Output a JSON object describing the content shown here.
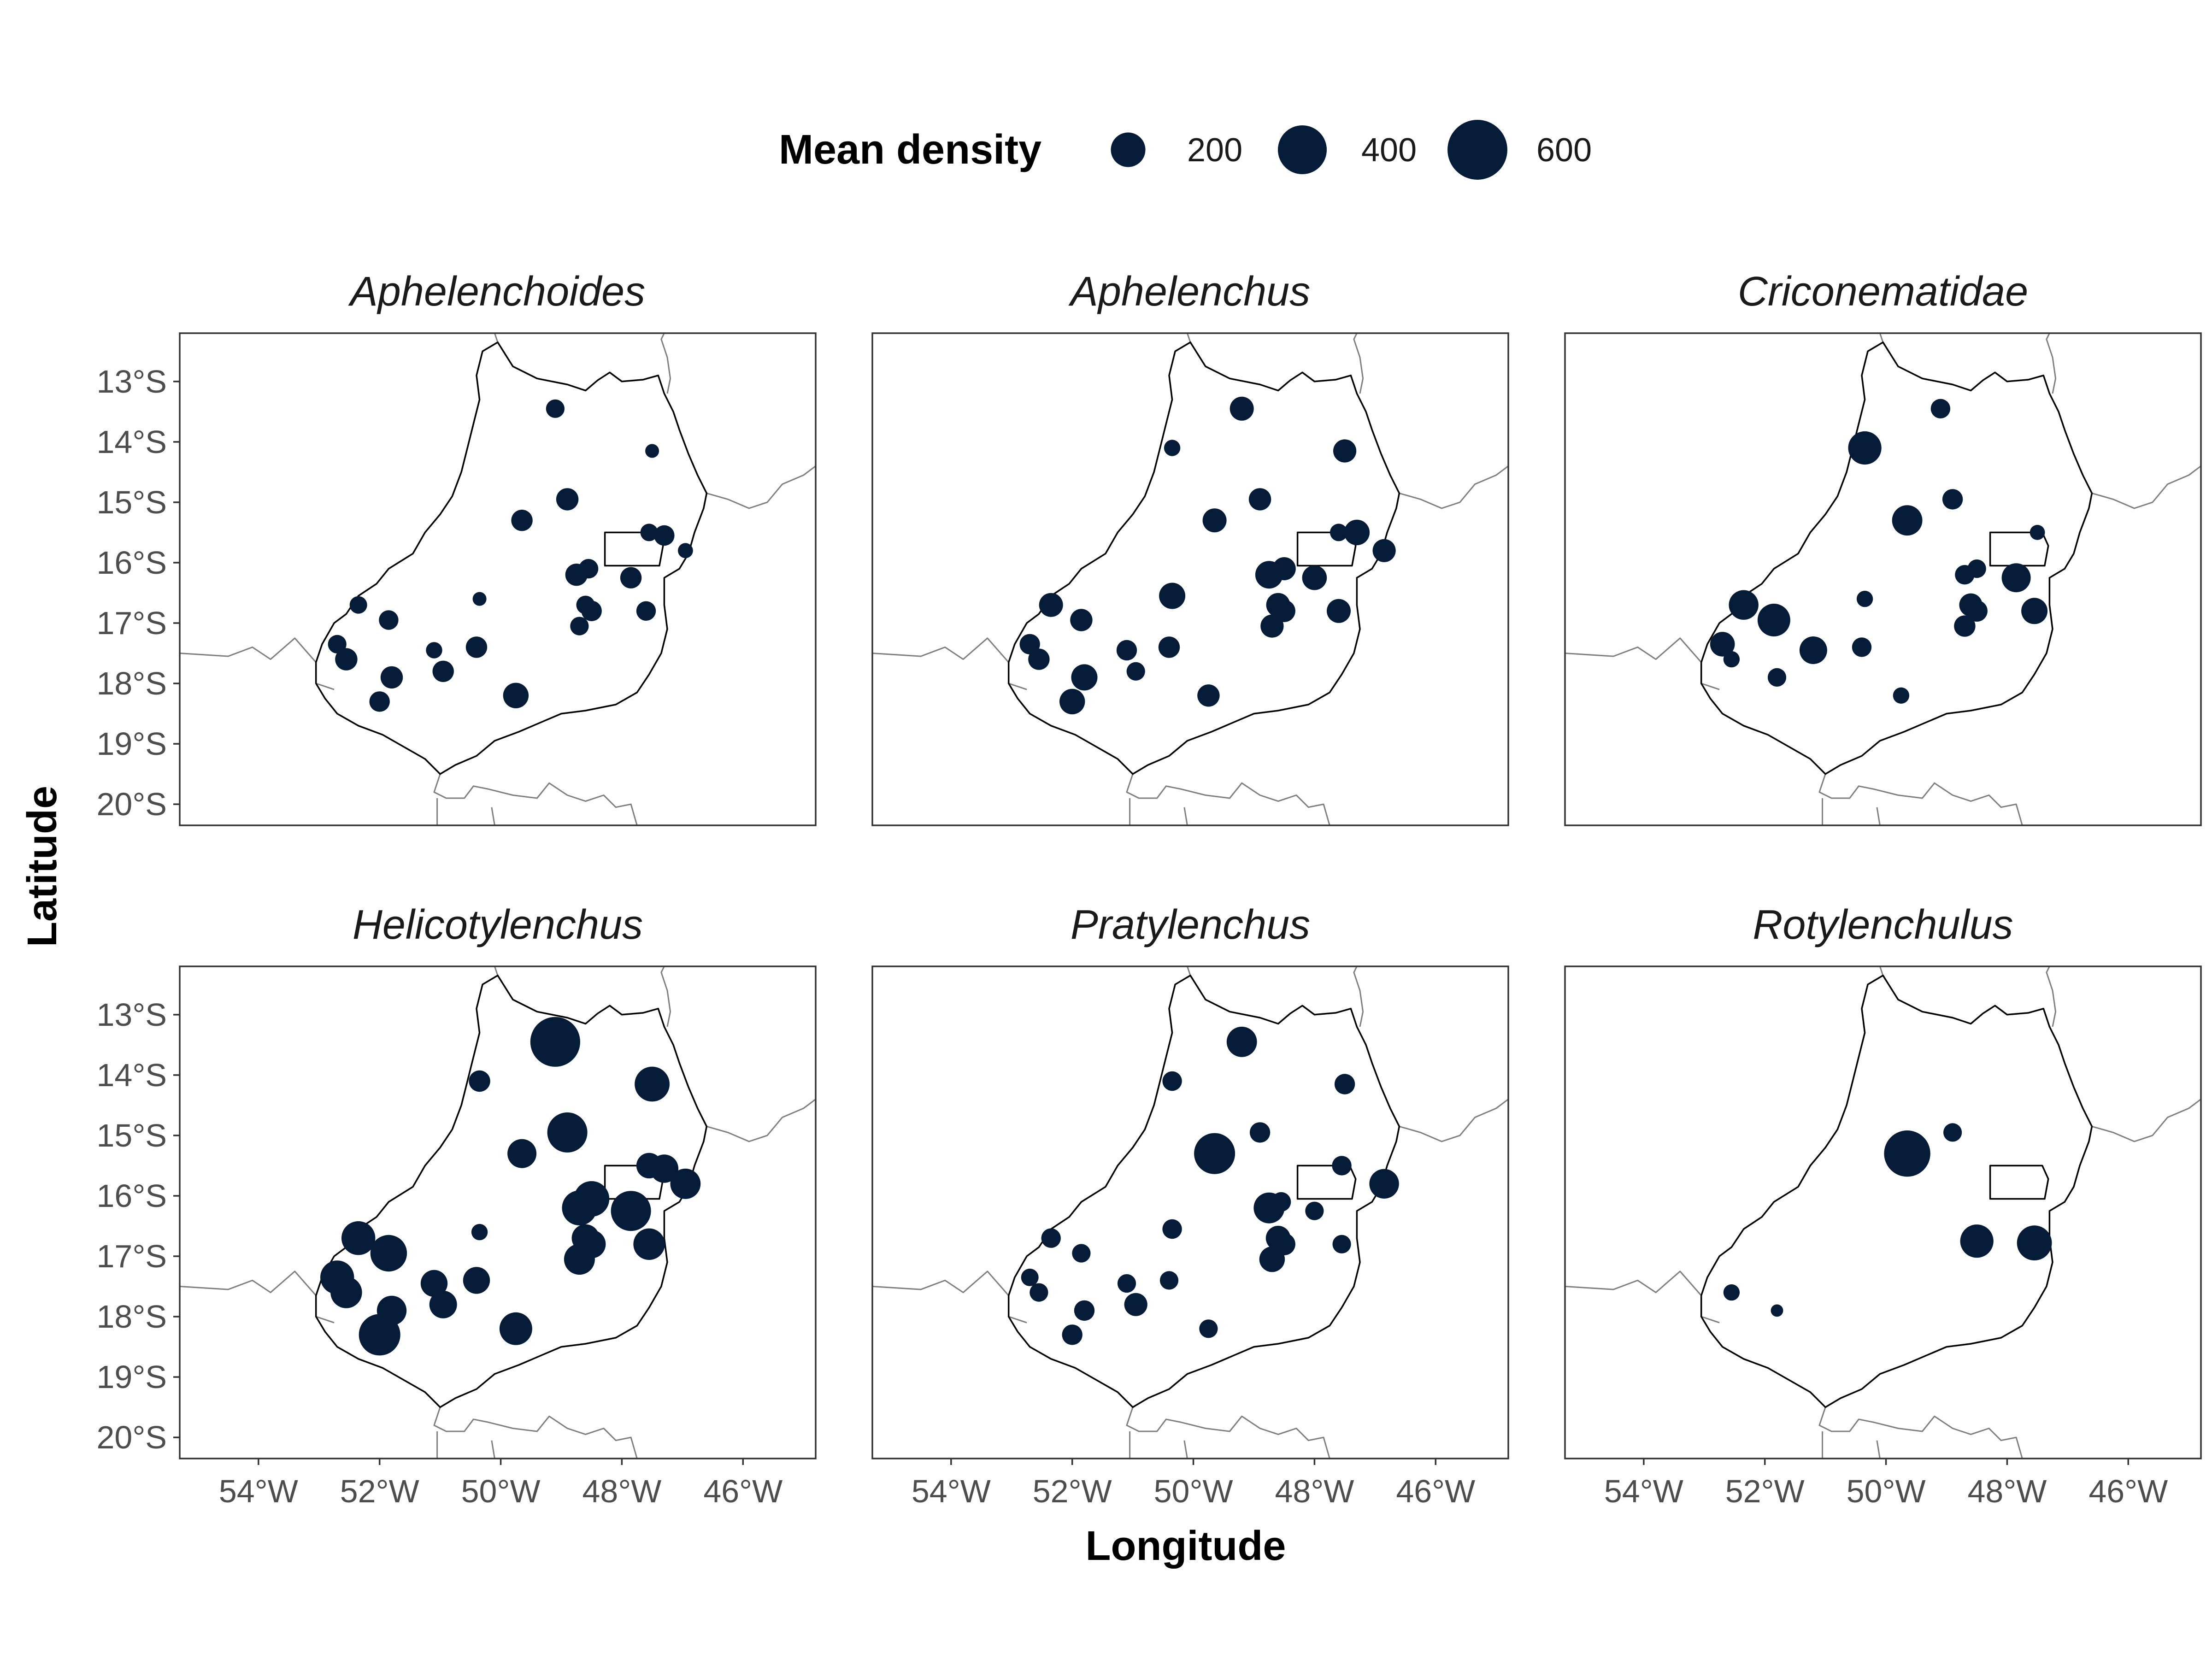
{
  "legend": {
    "title": "Mean density",
    "entries": [
      {
        "value": 200,
        "label": "200"
      },
      {
        "value": 400,
        "label": "400"
      },
      {
        "value": 600,
        "label": "600"
      }
    ]
  },
  "axes": {
    "xlabel": "Longitude",
    "ylabel": "Latitude",
    "x_ticks": [
      {
        "value": -54,
        "label": "54°W"
      },
      {
        "value": -52,
        "label": "52°W"
      },
      {
        "value": -50,
        "label": "50°W"
      },
      {
        "value": -48,
        "label": "48°W"
      },
      {
        "value": -46,
        "label": "46°W"
      }
    ],
    "y_ticks": [
      {
        "value": -13,
        "label": "13°S"
      },
      {
        "value": -14,
        "label": "14°S"
      },
      {
        "value": -15,
        "label": "15°S"
      },
      {
        "value": -16,
        "label": "16°S"
      },
      {
        "value": -17,
        "label": "17°S"
      },
      {
        "value": -18,
        "label": "18°S"
      },
      {
        "value": -19,
        "label": "19°S"
      },
      {
        "value": -20,
        "label": "20°S"
      }
    ],
    "xlim": [
      -55.3,
      -44.8
    ],
    "ylim": [
      -20.35,
      -12.2
    ]
  },
  "colors": {
    "point": "#041c38",
    "state_outline": "#000000",
    "neighbor_borders": "#7f7f7f",
    "panel_border": "#333333"
  },
  "chart_data": {
    "type": "scatter",
    "geometry": "bubble map",
    "size_variable": "Mean density",
    "facets": [
      {
        "title": "Aphelenchoides",
        "points": [
          {
            "lon": -49.1,
            "lat": -13.45,
            "density": 90
          },
          {
            "lon": -47.5,
            "lat": -14.15,
            "density": 50
          },
          {
            "lon": -48.9,
            "lat": -14.95,
            "density": 130
          },
          {
            "lon": -49.65,
            "lat": -15.3,
            "density": 120
          },
          {
            "lon": -47.55,
            "lat": -15.5,
            "density": 80
          },
          {
            "lon": -47.3,
            "lat": -15.55,
            "density": 110
          },
          {
            "lon": -46.95,
            "lat": -15.8,
            "density": 60
          },
          {
            "lon": -48.75,
            "lat": -16.2,
            "density": 130
          },
          {
            "lon": -48.55,
            "lat": -16.1,
            "density": 100
          },
          {
            "lon": -47.85,
            "lat": -16.25,
            "density": 120
          },
          {
            "lon": -50.35,
            "lat": -16.6,
            "density": 50
          },
          {
            "lon": -52.35,
            "lat": -16.7,
            "density": 80
          },
          {
            "lon": -48.6,
            "lat": -16.7,
            "density": 90
          },
          {
            "lon": -48.5,
            "lat": -16.8,
            "density": 110
          },
          {
            "lon": -47.6,
            "lat": -16.8,
            "density": 100
          },
          {
            "lon": -51.85,
            "lat": -16.95,
            "density": 100
          },
          {
            "lon": -48.7,
            "lat": -17.05,
            "density": 90
          },
          {
            "lon": -52.7,
            "lat": -17.35,
            "density": 90
          },
          {
            "lon": -52.55,
            "lat": -17.6,
            "density": 130
          },
          {
            "lon": -51.1,
            "lat": -17.45,
            "density": 70
          },
          {
            "lon": -50.4,
            "lat": -17.4,
            "density": 120
          },
          {
            "lon": -50.95,
            "lat": -17.8,
            "density": 120
          },
          {
            "lon": -51.8,
            "lat": -17.9,
            "density": 130
          },
          {
            "lon": -49.75,
            "lat": -18.2,
            "density": 170
          },
          {
            "lon": -52.0,
            "lat": -18.3,
            "density": 110
          }
        ]
      },
      {
        "title": "Aphelenchus",
        "points": [
          {
            "lon": -49.2,
            "lat": -13.45,
            "density": 150
          },
          {
            "lon": -50.35,
            "lat": -14.1,
            "density": 70
          },
          {
            "lon": -47.5,
            "lat": -14.15,
            "density": 140
          },
          {
            "lon": -48.9,
            "lat": -14.95,
            "density": 130
          },
          {
            "lon": -49.65,
            "lat": -15.3,
            "density": 150
          },
          {
            "lon": -47.6,
            "lat": -15.5,
            "density": 80
          },
          {
            "lon": -47.3,
            "lat": -15.5,
            "density": 170
          },
          {
            "lon": -46.85,
            "lat": -15.8,
            "density": 140
          },
          {
            "lon": -48.75,
            "lat": -16.2,
            "density": 200
          },
          {
            "lon": -48.5,
            "lat": -16.1,
            "density": 140
          },
          {
            "lon": -48.0,
            "lat": -16.25,
            "density": 160
          },
          {
            "lon": -50.35,
            "lat": -16.55,
            "density": 180
          },
          {
            "lon": -52.35,
            "lat": -16.7,
            "density": 150
          },
          {
            "lon": -48.6,
            "lat": -16.7,
            "density": 150
          },
          {
            "lon": -48.5,
            "lat": -16.8,
            "density": 130
          },
          {
            "lon": -47.6,
            "lat": -16.8,
            "density": 150
          },
          {
            "lon": -51.85,
            "lat": -16.95,
            "density": 130
          },
          {
            "lon": -48.7,
            "lat": -17.05,
            "density": 140
          },
          {
            "lon": -52.7,
            "lat": -17.35,
            "density": 110
          },
          {
            "lon": -52.55,
            "lat": -17.6,
            "density": 120
          },
          {
            "lon": -51.1,
            "lat": -17.45,
            "density": 110
          },
          {
            "lon": -50.4,
            "lat": -17.4,
            "density": 120
          },
          {
            "lon": -50.95,
            "lat": -17.8,
            "density": 90
          },
          {
            "lon": -51.8,
            "lat": -17.9,
            "density": 180
          },
          {
            "lon": -49.75,
            "lat": -18.2,
            "density": 130
          },
          {
            "lon": -52.0,
            "lat": -18.3,
            "density": 170
          }
        ]
      },
      {
        "title": "Criconematidae",
        "points": [
          {
            "lon": -49.1,
            "lat": -13.45,
            "density": 100
          },
          {
            "lon": -50.35,
            "lat": -14.1,
            "density": 290
          },
          {
            "lon": -48.9,
            "lat": -14.95,
            "density": 110
          },
          {
            "lon": -49.65,
            "lat": -15.3,
            "density": 240
          },
          {
            "lon": -47.5,
            "lat": -15.5,
            "density": 60
          },
          {
            "lon": -48.7,
            "lat": -16.2,
            "density": 100
          },
          {
            "lon": -48.5,
            "lat": -16.1,
            "density": 90
          },
          {
            "lon": -47.85,
            "lat": -16.25,
            "density": 220
          },
          {
            "lon": -50.35,
            "lat": -16.6,
            "density": 70
          },
          {
            "lon": -52.35,
            "lat": -16.7,
            "density": 230
          },
          {
            "lon": -48.6,
            "lat": -16.7,
            "density": 140
          },
          {
            "lon": -48.5,
            "lat": -16.8,
            "density": 120
          },
          {
            "lon": -47.55,
            "lat": -16.8,
            "density": 180
          },
          {
            "lon": -51.85,
            "lat": -16.95,
            "density": 280
          },
          {
            "lon": -48.7,
            "lat": -17.05,
            "density": 120
          },
          {
            "lon": -52.7,
            "lat": -17.35,
            "density": 160
          },
          {
            "lon": -52.55,
            "lat": -17.6,
            "density": 70
          },
          {
            "lon": -51.2,
            "lat": -17.45,
            "density": 200
          },
          {
            "lon": -50.4,
            "lat": -17.4,
            "density": 100
          },
          {
            "lon": -51.8,
            "lat": -17.9,
            "density": 90
          },
          {
            "lon": -49.75,
            "lat": -18.2,
            "density": 70
          }
        ]
      },
      {
        "title": "Helicotylenchus",
        "points": [
          {
            "lon": -49.1,
            "lat": -13.45,
            "density": 650
          },
          {
            "lon": -50.35,
            "lat": -14.1,
            "density": 120
          },
          {
            "lon": -47.5,
            "lat": -14.15,
            "density": 320
          },
          {
            "lon": -48.9,
            "lat": -14.95,
            "density": 420
          },
          {
            "lon": -49.65,
            "lat": -15.3,
            "density": 220
          },
          {
            "lon": -47.55,
            "lat": -15.5,
            "density": 170
          },
          {
            "lon": -47.3,
            "lat": -15.55,
            "density": 210
          },
          {
            "lon": -46.95,
            "lat": -15.8,
            "density": 240
          },
          {
            "lon": -48.7,
            "lat": -16.2,
            "density": 320
          },
          {
            "lon": -48.5,
            "lat": -16.05,
            "density": 330
          },
          {
            "lon": -47.85,
            "lat": -16.25,
            "density": 420
          },
          {
            "lon": -50.35,
            "lat": -16.6,
            "density": 70
          },
          {
            "lon": -52.35,
            "lat": -16.7,
            "density": 300
          },
          {
            "lon": -48.6,
            "lat": -16.7,
            "density": 200
          },
          {
            "lon": -48.5,
            "lat": -16.8,
            "density": 210
          },
          {
            "lon": -47.55,
            "lat": -16.8,
            "density": 260
          },
          {
            "lon": -51.85,
            "lat": -16.95,
            "density": 350
          },
          {
            "lon": -48.7,
            "lat": -17.05,
            "density": 250
          },
          {
            "lon": -52.7,
            "lat": -17.35,
            "density": 300
          },
          {
            "lon": -52.55,
            "lat": -17.6,
            "density": 260
          },
          {
            "lon": -51.1,
            "lat": -17.45,
            "density": 190
          },
          {
            "lon": -50.4,
            "lat": -17.4,
            "density": 190
          },
          {
            "lon": -50.95,
            "lat": -17.8,
            "density": 200
          },
          {
            "lon": -51.8,
            "lat": -17.9,
            "density": 230
          },
          {
            "lon": -49.75,
            "lat": -18.2,
            "density": 280
          },
          {
            "lon": -52.0,
            "lat": -18.3,
            "density": 450
          }
        ]
      },
      {
        "title": "Pratylenchus",
        "points": [
          {
            "lon": -49.2,
            "lat": -13.45,
            "density": 240
          },
          {
            "lon": -50.35,
            "lat": -14.1,
            "density": 100
          },
          {
            "lon": -47.5,
            "lat": -14.15,
            "density": 110
          },
          {
            "lon": -48.9,
            "lat": -14.95,
            "density": 110
          },
          {
            "lon": -49.65,
            "lat": -15.3,
            "density": 440
          },
          {
            "lon": -47.55,
            "lat": -15.5,
            "density": 100
          },
          {
            "lon": -46.85,
            "lat": -15.8,
            "density": 230
          },
          {
            "lon": -48.75,
            "lat": -16.2,
            "density": 250
          },
          {
            "lon": -48.55,
            "lat": -16.1,
            "density": 100
          },
          {
            "lon": -48.0,
            "lat": -16.25,
            "density": 90
          },
          {
            "lon": -50.35,
            "lat": -16.55,
            "density": 100
          },
          {
            "lon": -52.35,
            "lat": -16.7,
            "density": 100
          },
          {
            "lon": -48.6,
            "lat": -16.7,
            "density": 160
          },
          {
            "lon": -48.5,
            "lat": -16.8,
            "density": 130
          },
          {
            "lon": -47.55,
            "lat": -16.8,
            "density": 90
          },
          {
            "lon": -51.85,
            "lat": -16.95,
            "density": 90
          },
          {
            "lon": -48.7,
            "lat": -17.05,
            "density": 170
          },
          {
            "lon": -52.7,
            "lat": -17.35,
            "density": 80
          },
          {
            "lon": -52.55,
            "lat": -17.6,
            "density": 90
          },
          {
            "lon": -51.1,
            "lat": -17.45,
            "density": 90
          },
          {
            "lon": -50.4,
            "lat": -17.4,
            "density": 90
          },
          {
            "lon": -50.95,
            "lat": -17.8,
            "density": 140
          },
          {
            "lon": -51.8,
            "lat": -17.9,
            "density": 110
          },
          {
            "lon": -49.75,
            "lat": -18.2,
            "density": 90
          },
          {
            "lon": -52.0,
            "lat": -18.3,
            "density": 110
          }
        ]
      },
      {
        "title": "Rotylenchulus",
        "points": [
          {
            "lon": -49.65,
            "lat": -15.3,
            "density": 560
          },
          {
            "lon": -48.9,
            "lat": -14.95,
            "density": 90
          },
          {
            "lon": -48.5,
            "lat": -16.75,
            "density": 290
          },
          {
            "lon": -47.55,
            "lat": -16.78,
            "density": 320
          },
          {
            "lon": -52.55,
            "lat": -17.6,
            "density": 70
          },
          {
            "lon": -51.8,
            "lat": -17.9,
            "density": 40
          }
        ]
      }
    ]
  }
}
